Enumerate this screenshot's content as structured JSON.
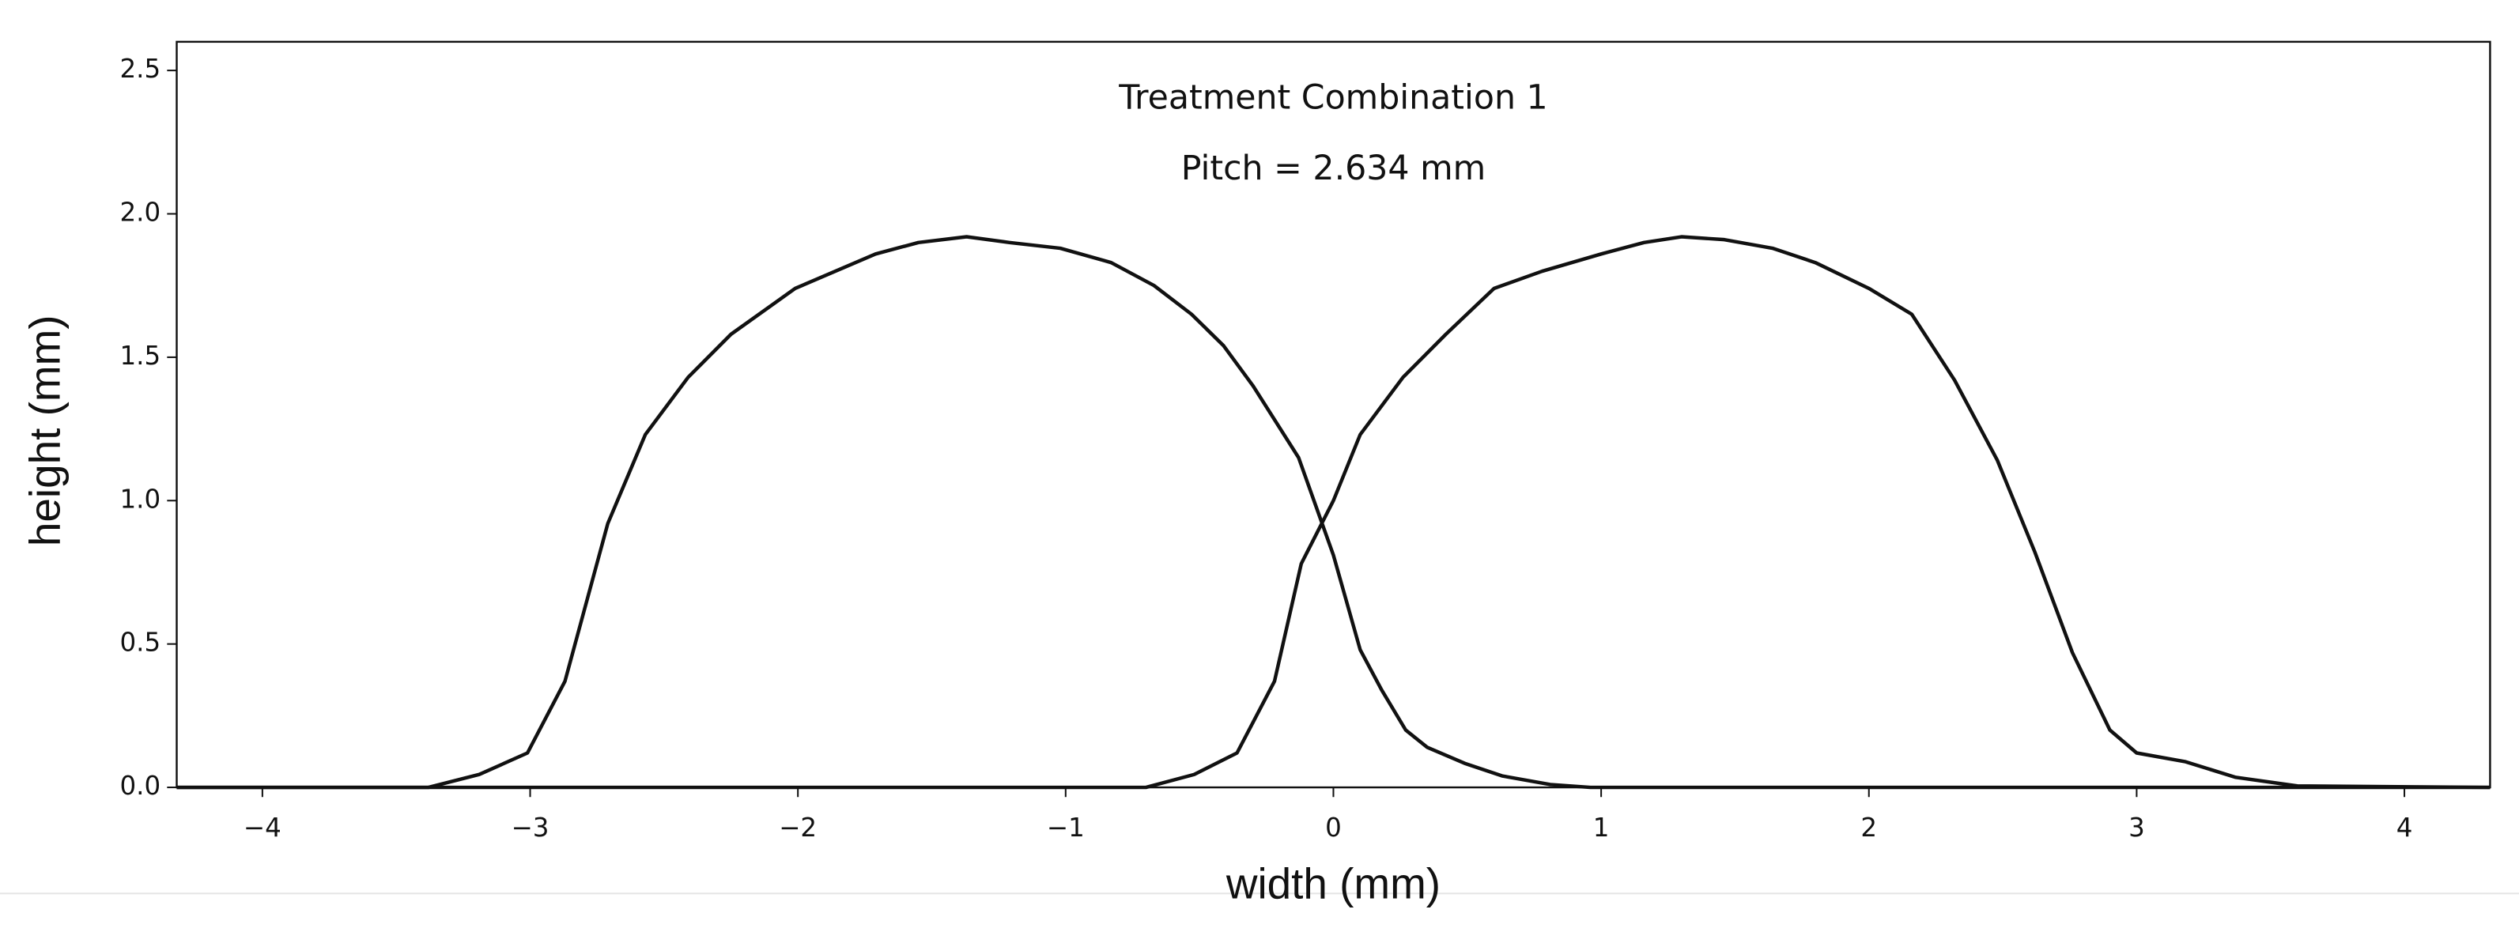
{
  "chart_data": {
    "type": "line",
    "annotations": [
      "Treatment Combination 1",
      "Pitch = 2.634 mm"
    ],
    "xlabel": "width (mm)",
    "ylabel": "height (mm)",
    "xlim": [
      -4.32,
      4.32
    ],
    "ylim": [
      0,
      2.6
    ],
    "xticks": [
      {
        "value": -4,
        "label": "−4"
      },
      {
        "value": -3,
        "label": "−3"
      },
      {
        "value": -2,
        "label": "−2"
      },
      {
        "value": -1,
        "label": "−1"
      },
      0,
      1,
      2,
      3,
      4
    ],
    "yticks": [
      {
        "value": 0,
        "label": "0.0"
      },
      0.5,
      {
        "value": 1,
        "label": "1.0"
      },
      1.5,
      {
        "value": 2,
        "label": "2.0"
      },
      2.5
    ],
    "series": [
      {
        "color": "#111111",
        "x": [
          -4.32,
          -3.38,
          -3.19,
          -3.01,
          -2.87,
          -2.71,
          -2.57,
          -2.41,
          -2.25,
          -2.01,
          -1.86,
          -1.71,
          -1.55,
          -1.37,
          -1.21,
          -1.02,
          -0.83,
          -0.67,
          -0.53,
          -0.41,
          -0.3,
          -0.13,
          0,
          0.1,
          0.18,
          0.27,
          0.35,
          0.49,
          0.63,
          0.81,
          0.96,
          4.32
        ],
        "values": [
          0,
          0,
          0.045,
          0.12,
          0.37,
          0.92,
          1.23,
          1.43,
          1.58,
          1.74,
          1.8,
          1.86,
          1.9,
          1.92,
          1.9,
          1.88,
          1.83,
          1.75,
          1.65,
          1.54,
          1.4,
          1.15,
          0.81,
          0.48,
          0.34,
          0.2,
          0.14,
          0.084,
          0.04,
          0.01,
          0,
          0
        ]
      },
      {
        "color": "#111111",
        "x": [
          -4.32,
          -0.7,
          -0.52,
          -0.36,
          -0.22,
          -0.12,
          0,
          0.1,
          0.26,
          0.42,
          0.6,
          0.78,
          1.0,
          1.16,
          1.3,
          1.46,
          1.64,
          1.8,
          2.0,
          2.16,
          2.32,
          2.48,
          2.62,
          2.76,
          2.9,
          3.0,
          3.18,
          3.37,
          3.6,
          4.32
        ],
        "values": [
          0,
          0,
          0.045,
          0.12,
          0.37,
          0.78,
          1.0,
          1.23,
          1.43,
          1.58,
          1.74,
          1.8,
          1.86,
          1.9,
          1.92,
          1.91,
          1.88,
          1.83,
          1.74,
          1.65,
          1.42,
          1.14,
          0.82,
          0.47,
          0.2,
          0.12,
          0.09,
          0.035,
          0.005,
          0
        ]
      }
    ]
  }
}
